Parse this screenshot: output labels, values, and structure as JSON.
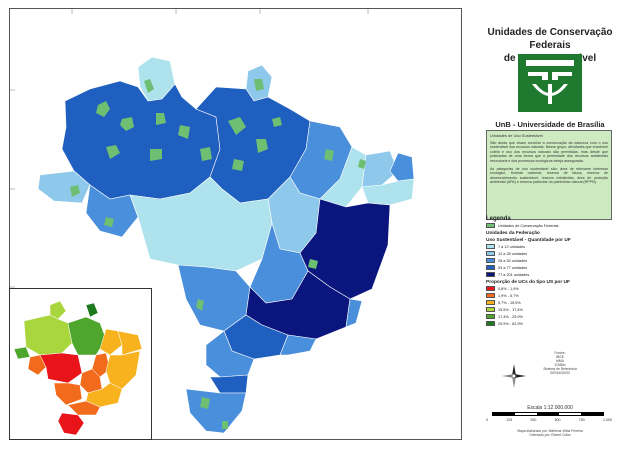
{
  "title": {
    "line1": "Unidades de Conservação Federais",
    "line2": "de Uso Sustentável"
  },
  "university": "UnB - Universidade de Brasília",
  "description": {
    "heading": "Unidades de Uso Sustentável",
    "p1": "São áreas que visam conciliar a conservação da natureza com o uso sustentável dos recursos naturais. Nesse grupo, atividades que envolvem coleta e uso dos recursos naturais são permitidas, mas desde que praticadas de uma forma que a perenidade dos recursos ambientais renováveis e dos processos ecológicos esteja assegurada.",
    "p2": "As categorias de uso sustentável são: área de relevante interesse ecológico, floresta nacional, reserva de fauna, reserva de desenvolvimento sustentável, reserva extrativista, área de proteção ambiental (APA) e reserva particular do patrimônio natural (RPPN)."
  },
  "legend": {
    "heading": "Legenda",
    "uc_item": {
      "label": "Unidades de Conservação Federais",
      "color": "#6fbf73"
    },
    "uf_heading": "Unidades da Federação",
    "qty_heading": "Uso Sustentável - Quantidade por UF",
    "qty_items": [
      {
        "label": "7 a 12 unidades",
        "color": "#aee3ee"
      },
      {
        "label": "12 a 28 unidades",
        "color": "#8ec8ea"
      },
      {
        "label": "28 a 53 unidades",
        "color": "#4a8fdc"
      },
      {
        "label": "53 a 77 unidades",
        "color": "#1f5fbf"
      },
      {
        "label": "77 a 201 unidades",
        "color": "#0b157e"
      }
    ],
    "prop_heading": "Proporção de UCs do tipo US por UF",
    "prop_items": [
      {
        "label": "0,8% - 1,9%",
        "color": "#e8141a"
      },
      {
        "label": "1,9% - 5,7%",
        "color": "#f26a1b"
      },
      {
        "label": "5,7% - 15,5%",
        "color": "#f7b21e"
      },
      {
        "label": "15,5% - 17,4%",
        "color": "#a8d63c"
      },
      {
        "label": "17,4% - 29,9%",
        "color": "#4fa62c"
      },
      {
        "label": "29,9% - 62,9%",
        "color": "#1c7b1d"
      }
    ]
  },
  "sources": "Fontes:\nIBGE\nMMA\nICMBio\nSistema de Referência\nSIRGAS2000",
  "scale": {
    "label": "Escala 1:12.000.000",
    "ticks": [
      "0",
      "125",
      "250",
      "500",
      "750",
      "1.000"
    ]
  },
  "credits": "Mapa elaborado por: Matheus Vilela Ferreira\nOrientado por: Robert Collor",
  "colors": {
    "panel_green": "#cdeac0",
    "logo_green": "#1f7a2f",
    "uc_green": "#6fbf73"
  }
}
